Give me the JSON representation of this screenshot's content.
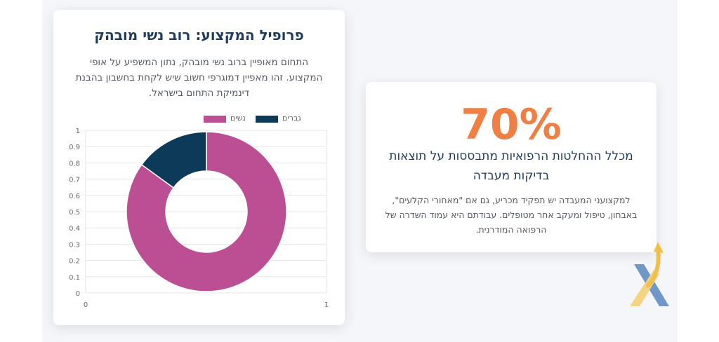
{
  "chart_card": {
    "title": "פרופיל המקצוע: רוב נשי מובהק",
    "description": "התחום מאופיין ברוב נשי מובהק, נתון המשפיע על אופי המקצוע. זהו מאפיין דמוגרפי חשוב שיש לקחת בחשבון בהבנת דינמיקת התחום בישראל."
  },
  "chart_data": {
    "type": "pie",
    "variant": "doughnut",
    "labels": [
      "נשים",
      "גברים"
    ],
    "values": [
      85,
      15
    ],
    "colors": [
      "#bc4f94",
      "#0e3a5a"
    ],
    "legend": {
      "position": "top",
      "entries": [
        "נשים",
        "גברים"
      ]
    },
    "y_ticks": [
      "0",
      "0.1",
      "0.2",
      "0.3",
      "0.4",
      "0.5",
      "0.6",
      "0.7",
      "0.8",
      "0.9",
      "1"
    ],
    "x_ticks": [
      "0",
      "1"
    ],
    "grid": true
  },
  "stat_card": {
    "value": "70%",
    "headline": "מכלל ההחלטות הרפואיות מתבססות על תוצאות בדיקות מעבדה",
    "body": "למקצועני המעבדה יש תפקיד מכריע, גם אם \"מאחורי הקלעים\", באבחון, טיפול ומעקב אחר מטופלים. עבודתם היא עמוד השדרה של הרפואה המודרנית.",
    "accent_color": "#f07f44"
  },
  "logo": {
    "icon": "x-arrow-logo-icon",
    "colors": [
      "#6f98c9",
      "#f4d27a",
      "#f2c04a"
    ]
  }
}
